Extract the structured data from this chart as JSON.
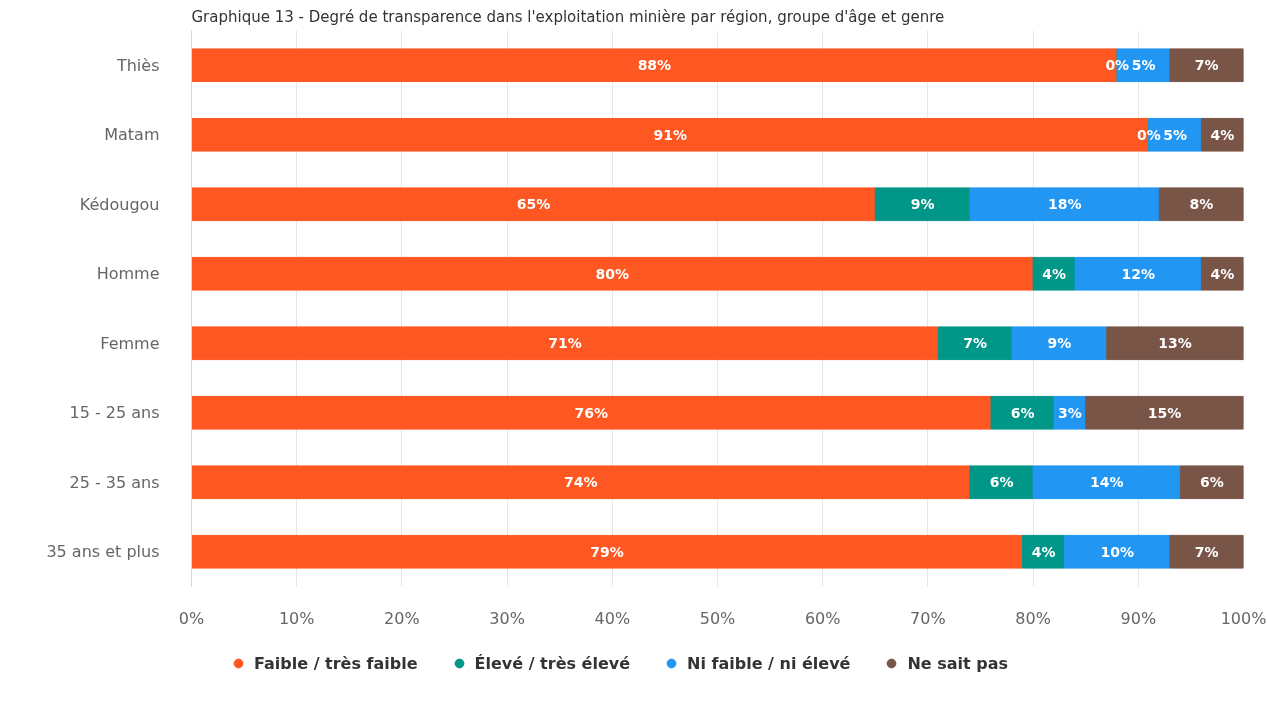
{
  "chart_data": {
    "type": "bar",
    "orientation": "horizontal",
    "stacked": true,
    "title": "Graphique 13 - Degré de transparence dans l'exploitation minière par région, groupe d'âge et genre",
    "categories": [
      "Thiès",
      "Matam",
      "Kédougou",
      "Homme",
      "Femme",
      "15 - 25 ans",
      "25 - 35 ans",
      "35 ans et plus"
    ],
    "series": [
      {
        "name": "Faible / très faible",
        "color": "#ff5722",
        "values": [
          88,
          91,
          65,
          80,
          71,
          76,
          74,
          79
        ],
        "value_labels": [
          "88%",
          "91%",
          "65%",
          "80%",
          "71%",
          "76%",
          "74%",
          "79%"
        ]
      },
      {
        "name": "Élevé / très élevé",
        "color": "#009688",
        "values": [
          0,
          0,
          9,
          4,
          7,
          6,
          6,
          4
        ],
        "value_labels": [
          "0%",
          "0%",
          "9%",
          "4%",
          "7%",
          "6%",
          "6%",
          "4%"
        ]
      },
      {
        "name": "Ni faible / ni élevé",
        "color": "#2196f3",
        "values": [
          5,
          5,
          18,
          12,
          9,
          3,
          14,
          10
        ],
        "value_labels": [
          "5%",
          "5%",
          "18%",
          "12%",
          "9%",
          "3%",
          "14%",
          "10%"
        ]
      },
      {
        "name": "Ne sait pas",
        "color": "#795548",
        "values": [
          7,
          4,
          8,
          4,
          13,
          15,
          6,
          7
        ],
        "value_labels": [
          "7%",
          "4%",
          "8%",
          "4%",
          "13%",
          "15%",
          "6%",
          "7%"
        ]
      }
    ],
    "xlim": [
      0,
      100
    ],
    "xticks": [
      {
        "value": 0,
        "label": "0%"
      },
      {
        "value": 10,
        "label": "10%"
      },
      {
        "value": 20,
        "label": "20%"
      },
      {
        "value": 30,
        "label": "30%"
      },
      {
        "value": 40,
        "label": "40%"
      },
      {
        "value": 50,
        "label": "50%"
      },
      {
        "value": 60,
        "label": "60%"
      },
      {
        "value": 70,
        "label": "70%"
      },
      {
        "value": 80,
        "label": "80%"
      },
      {
        "value": 90,
        "label": "90%"
      },
      {
        "value": 100,
        "label": "100%"
      }
    ],
    "grid": "x",
    "legend": "bottom left"
  }
}
